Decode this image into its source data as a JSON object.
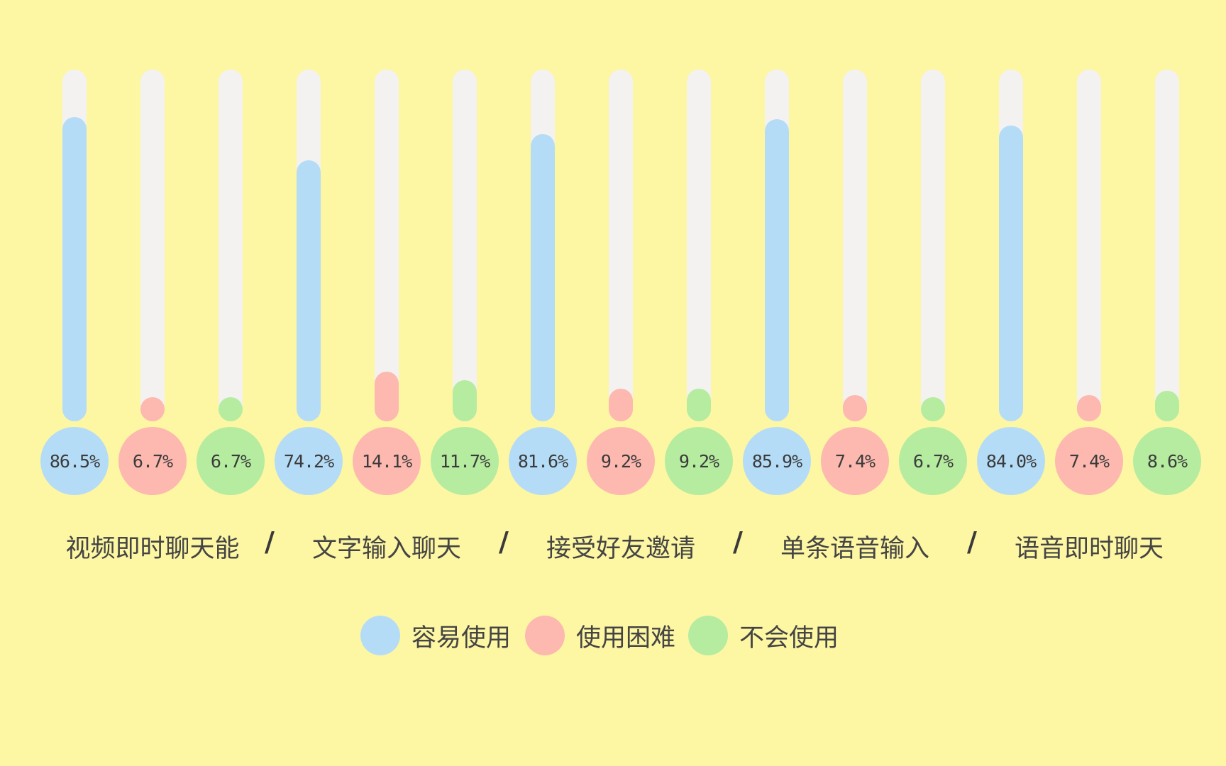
{
  "chart_data": {
    "type": "bar",
    "ylim": [
      0,
      100
    ],
    "categories": [
      "视频即时聊天能",
      "文字输入聊天",
      "接受好友邀请",
      "单条语音输入",
      "语音即时聊天"
    ],
    "separator": "/",
    "series": [
      {
        "name": "容易使用",
        "color": "#B5DCF7",
        "values": [
          86.5,
          74.2,
          81.6,
          85.9,
          84.0
        ],
        "labels": [
          "86.5%",
          "74.2%",
          "81.6%",
          "85.9%",
          "84.0%"
        ]
      },
      {
        "name": "使用困难",
        "color": "#FDB8B0",
        "values": [
          6.7,
          14.1,
          9.2,
          7.4,
          7.4
        ],
        "labels": [
          "6.7%",
          "14.1%",
          "9.2%",
          "7.4%",
          "7.4%"
        ]
      },
      {
        "name": "不会使用",
        "color": "#B5ECA0",
        "values": [
          6.7,
          11.7,
          9.2,
          6.7,
          8.6
        ],
        "labels": [
          "6.7%",
          "11.7%",
          "9.2%",
          "6.7%",
          "8.6%"
        ]
      }
    ],
    "track_color": "#F3F2F0",
    "legend_position": "bottom",
    "grid": false
  }
}
